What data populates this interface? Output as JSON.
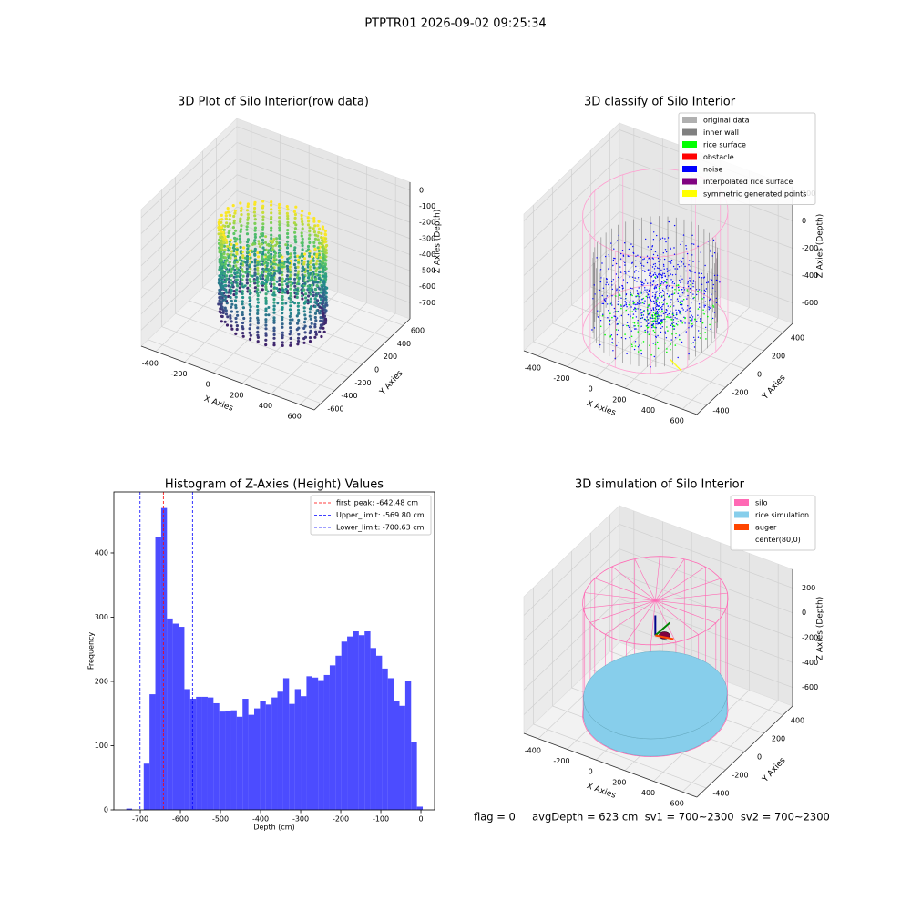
{
  "suptitle": "PTPTR01 2026-09-02 09:25:34",
  "chart_data": [
    {
      "type": "scatter3d",
      "title": "3D Plot of Silo Interior(row data)",
      "xlabel": "X Axies",
      "ylabel": "Y Axies",
      "zlabel": "Z Axies (Depth)",
      "xlim": [
        -500,
        700
      ],
      "ylim": [
        -700,
        700
      ],
      "zlim": [
        -800,
        50
      ],
      "xticks": [
        -400,
        -200,
        0,
        200,
        400,
        600
      ],
      "yticks": [
        -600,
        -400,
        -200,
        0,
        200,
        400,
        600
      ],
      "zticks": [
        0,
        -100,
        -200,
        -300,
        -400,
        -500,
        -600,
        -700
      ]
    },
    {
      "type": "classify3d",
      "title": "3D classify of Silo Interior",
      "xlabel": "X Axies",
      "ylabel": "Y Axies",
      "zlabel": "Z Axies (Depth)",
      "xlim": [
        -500,
        700
      ],
      "ylim": [
        -500,
        500
      ],
      "zlim": [
        -750,
        250
      ],
      "xticks": [
        -400,
        -200,
        0,
        200,
        400,
        600
      ],
      "yticks": [
        -400,
        -200,
        0,
        200,
        400
      ],
      "zticks": [
        200,
        0,
        -200,
        -400,
        -600
      ],
      "legend": [
        {
          "name": "original data",
          "color": "#b0b0b0"
        },
        {
          "name": "inner wall",
          "color": "#808080"
        },
        {
          "name": "rice surface",
          "color": "#00ff00"
        },
        {
          "name": "obstacle",
          "color": "#ff0000"
        },
        {
          "name": "noise",
          "color": "#0000ff"
        },
        {
          "name": "interpolated rice surface",
          "color": "#800080"
        },
        {
          "name": "symmetric generated points",
          "color": "#ffff00"
        }
      ],
      "silo_color": "#ff9ccf"
    },
    {
      "type": "histogram",
      "title": "Histogram of Z-Axies (Height) Values",
      "xlabel": "Depth (cm)",
      "ylabel": "Frequency",
      "color": "#0000ff",
      "bins": [
        -735,
        -720.5,
        -706,
        -691.5,
        -677,
        -662.5,
        -648,
        -633.5,
        -619,
        -604.5,
        -590,
        -575.5,
        -561,
        -546.5,
        -532,
        -517.5,
        -503,
        -488.5,
        -474,
        -459.5,
        -445,
        -430.5,
        -416,
        -401.5,
        -387,
        -372.5,
        -358,
        -343.5,
        -329,
        -314.5,
        -300,
        -285.5,
        -271,
        -256.5,
        -242,
        -227.5,
        -213,
        -198.5,
        -184,
        -169.5,
        -155,
        -140.5,
        -126,
        -111.5,
        -97,
        -82.5,
        -68,
        -53.5,
        -39,
        -24.5,
        -10,
        4.5
      ],
      "counts": [
        2,
        0,
        0,
        72,
        180,
        425,
        470,
        298,
        290,
        285,
        188,
        173,
        176,
        176,
        175,
        166,
        153,
        154,
        155,
        145,
        173,
        148,
        158,
        170,
        164,
        175,
        184,
        205,
        165,
        188,
        177,
        208,
        206,
        202,
        210,
        225,
        240,
        262,
        270,
        278,
        272,
        278,
        252,
        240,
        220,
        205,
        170,
        162,
        200,
        105,
        5
      ],
      "xlim": [
        -766,
        34
      ],
      "ylim": [
        0,
        495
      ],
      "xticks": [
        -700,
        -600,
        -500,
        -400,
        -300,
        -200,
        -100,
        0
      ],
      "yticks": [
        0,
        100,
        200,
        300,
        400
      ],
      "lines": [
        {
          "label": "first_peak: -642.48 cm",
          "value": -642.48,
          "color": "#ff0000"
        },
        {
          "label": "Upper_limit: -569.80 cm",
          "value": -569.8,
          "color": "#0000ff"
        },
        {
          "label": "Lower_limit: -700.63 cm",
          "value": -700.63,
          "color": "#0000ff"
        }
      ],
      "legend_position": "upper right"
    },
    {
      "type": "surface3d",
      "title": "3D simulation of Silo Interior",
      "xlabel": "X Axies",
      "ylabel": "Y Axies",
      "zlabel": "Z Axies (Depth)",
      "xlim": [
        -500,
        700
      ],
      "ylim": [
        -500,
        500
      ],
      "zlim": [
        -750,
        350
      ],
      "xticks": [
        -400,
        -200,
        0,
        200,
        400,
        600
      ],
      "yticks": [
        -400,
        -200,
        0,
        200,
        400
      ],
      "zticks": [
        200,
        0,
        -200,
        -400,
        -600
      ],
      "legend": [
        {
          "name": "silo",
          "color": "#ff69b4"
        },
        {
          "name": "rice simulation",
          "color": "#87ceeb"
        },
        {
          "name": "auger",
          "color": "#ff4500"
        },
        {
          "name": "center(80,0)",
          "color": "#ffffff"
        }
      ]
    }
  ],
  "footer": "flag = 0     avgDepth = 623 cm  sv1 = 700~2300  sv2 = 700~2300"
}
